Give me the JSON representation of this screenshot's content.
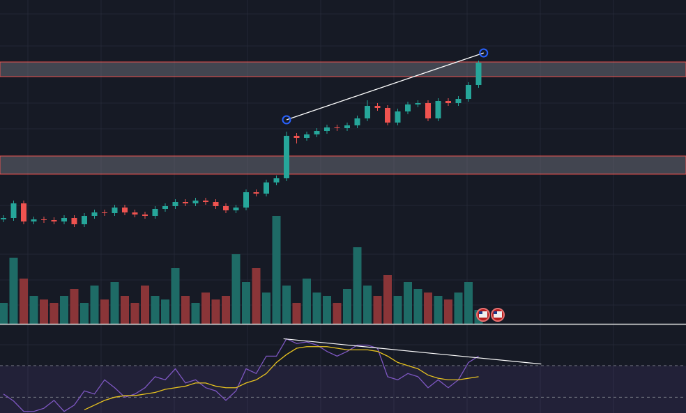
{
  "chart_data": [
    {
      "type": "candlestick",
      "up_color": "#26a69a",
      "down_color": "#ef5350",
      "open": [
        150,
        152,
        173,
        147,
        150,
        149,
        147,
        152,
        143,
        155,
        160,
        159,
        167,
        160,
        157,
        155,
        165,
        169,
        175,
        173,
        177,
        175,
        169,
        163,
        167,
        189,
        187,
        203,
        209,
        270,
        267,
        272,
        277,
        282,
        281,
        285,
        295,
        313,
        310,
        289,
        305,
        315,
        317,
        295,
        320,
        317,
        323,
        343
      ],
      "high": [
        156,
        177,
        177,
        154,
        154,
        153,
        156,
        156,
        159,
        164,
        164,
        171,
        171,
        164,
        161,
        169,
        173,
        179,
        179,
        181,
        181,
        179,
        173,
        171,
        193,
        193,
        207,
        213,
        276,
        274,
        276,
        281,
        286,
        286,
        289,
        299,
        321,
        317,
        314,
        309,
        319,
        321,
        321,
        324,
        324,
        327,
        347,
        378
      ],
      "low": [
        146,
        148,
        143,
        143,
        145,
        143,
        143,
        139,
        139,
        151,
        155,
        155,
        156,
        153,
        151,
        151,
        161,
        165,
        169,
        169,
        171,
        165,
        159,
        159,
        163,
        183,
        183,
        199,
        205,
        259,
        263,
        268,
        273,
        277,
        277,
        281,
        291,
        306,
        285,
        285,
        301,
        311,
        291,
        291,
        313,
        313,
        319,
        339
      ],
      "close": [
        152,
        173,
        147,
        150,
        149,
        147,
        152,
        143,
        155,
        160,
        159,
        167,
        160,
        157,
        155,
        165,
        169,
        175,
        173,
        177,
        175,
        169,
        163,
        167,
        189,
        187,
        203,
        209,
        270,
        267,
        272,
        277,
        282,
        281,
        285,
        295,
        313,
        310,
        289,
        305,
        315,
        317,
        295,
        320,
        317,
        323,
        343,
        375
      ],
      "ylim": [
        0,
        465
      ],
      "zones": [
        {
          "from": 355,
          "to": 376,
          "color": "#ef5350"
        },
        {
          "from": 215,
          "to": 241,
          "color": "#ef5350"
        }
      ],
      "trendline": {
        "x": [
          28,
          47.5
        ],
        "values": [
          293,
          389
        ],
        "color": "#ffffff",
        "marker_color": "#2962ff"
      }
    },
    {
      "type": "bar",
      "up_color": "#1e6b66",
      "down_color": "#8a3538",
      "values": [
        30,
        95,
        65,
        40,
        35,
        30,
        40,
        50,
        30,
        55,
        35,
        60,
        40,
        30,
        55,
        40,
        35,
        80,
        40,
        30,
        45,
        35,
        40,
        100,
        60,
        80,
        45,
        155,
        55,
        30,
        65,
        45,
        40,
        30,
        50,
        110,
        55,
        40,
        70,
        40,
        60,
        50,
        45,
        40,
        35,
        45,
        60,
        20
      ],
      "ylim": [
        0,
        160
      ]
    },
    {
      "type": "line",
      "ylim": [
        40,
        96
      ],
      "levels": [
        70,
        50
      ],
      "series": [
        {
          "color": "#7e57c2",
          "values": [
            52,
            47.6,
            41,
            41,
            43,
            48,
            41,
            45,
            54,
            52,
            61,
            56,
            50,
            52,
            56,
            63,
            61,
            68,
            59,
            61,
            56,
            54,
            48,
            54,
            68,
            65,
            76,
            76,
            87,
            84,
            85,
            83,
            79,
            76,
            79,
            83,
            83,
            81,
            63,
            61,
            65,
            63,
            56,
            61,
            56,
            61,
            72,
            76
          ]
        },
        {
          "color": "#e8c31f",
          "values": [
            null,
            null,
            null,
            null,
            null,
            null,
            null,
            null,
            42,
            45,
            48,
            50,
            51,
            51,
            52,
            53,
            55,
            56,
            57,
            59,
            59,
            57,
            56,
            56,
            59,
            61,
            65,
            72,
            77,
            81,
            82,
            82,
            82,
            81,
            80,
            80,
            80,
            79,
            76,
            72,
            70,
            68,
            64,
            62,
            61,
            61,
            62,
            63
          ]
        }
      ],
      "trendline": {
        "x": [
          27.7,
          53.2
        ],
        "values": [
          87,
          71
        ],
        "color": "#ffffff"
      }
    }
  ]
}
